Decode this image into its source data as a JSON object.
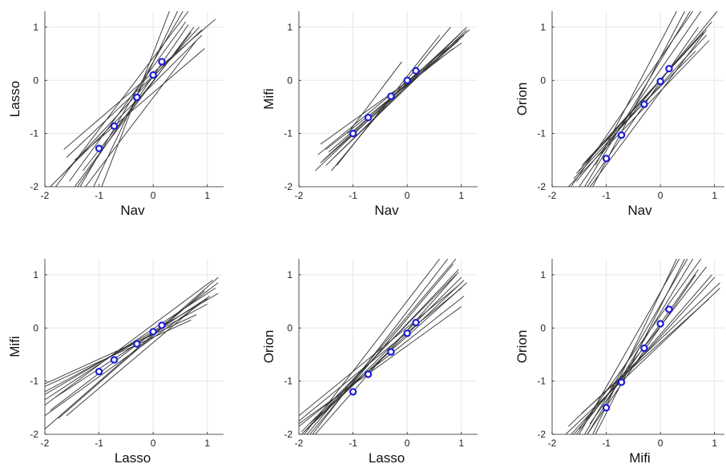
{
  "chart_data": [
    {
      "type": "line",
      "xlabel": "Nav",
      "ylabel": "Lasso",
      "xlim": [
        -2,
        1.3
      ],
      "ylim": [
        -2,
        1.3
      ],
      "xticks": [
        -2,
        -1,
        0,
        1
      ],
      "yticks": [
        -2,
        -1,
        0,
        1
      ],
      "tick_labels": [
        "-2",
        "-1",
        "0",
        "1"
      ],
      "grid": true,
      "points": [
        [
          -1.0,
          -1.28
        ],
        [
          -0.72,
          -0.86
        ],
        [
          -0.3,
          -0.32
        ],
        [
          0.0,
          0.1
        ],
        [
          0.16,
          0.35
        ]
      ],
      "lines": [
        [
          -1.8,
          -2.0,
          0.65,
          1.3
        ],
        [
          -1.7,
          -1.8,
          0.85,
          1.0
        ],
        [
          -1.45,
          -2.0,
          0.75,
          1.0
        ],
        [
          -1.6,
          -1.45,
          0.9,
          0.95
        ],
        [
          -1.35,
          -2.0,
          0.55,
          1.3
        ],
        [
          -1.9,
          -2.0,
          0.9,
          0.85
        ],
        [
          -1.1,
          -2.0,
          0.45,
          1.3
        ],
        [
          -1.3,
          -1.7,
          0.7,
          0.9
        ],
        [
          -1.55,
          -1.9,
          0.6,
          1.1
        ],
        [
          -1.25,
          -2.0,
          0.8,
          0.75
        ],
        [
          -0.95,
          -2.0,
          0.3,
          1.3
        ],
        [
          -1.65,
          -1.3,
          1.15,
          1.15
        ],
        [
          -1.45,
          -1.5,
          0.95,
          0.6
        ],
        [
          -1.4,
          -2.0,
          0.65,
          1.05
        ]
      ]
    },
    {
      "type": "line",
      "xlabel": "Nav",
      "ylabel": "Mifi",
      "xlim": [
        -2,
        1.3
      ],
      "ylim": [
        -2,
        1.3
      ],
      "xticks": [
        -2,
        -1,
        0,
        1
      ],
      "yticks": [
        -2,
        -1,
        0,
        1
      ],
      "tick_labels": [
        "-2",
        "-1",
        "0",
        "1"
      ],
      "grid": true,
      "points": [
        [
          -1.0,
          -1.0
        ],
        [
          -0.72,
          -0.7
        ],
        [
          -0.3,
          -0.3
        ],
        [
          0.0,
          0.0
        ],
        [
          0.16,
          0.18
        ]
      ],
      "lines": [
        [
          -1.7,
          -1.7,
          1.1,
          1.0
        ],
        [
          -1.6,
          -1.2,
          1.0,
          0.7
        ],
        [
          -1.5,
          -1.6,
          1.0,
          0.9
        ],
        [
          -1.65,
          -1.4,
          1.15,
          0.95
        ],
        [
          -1.3,
          -1.6,
          0.6,
          0.85
        ],
        [
          -1.1,
          -1.0,
          -0.1,
          0.35
        ],
        [
          -1.55,
          -1.5,
          0.9,
          0.8
        ],
        [
          -1.4,
          -1.7,
          0.8,
          1.0
        ],
        [
          -1.45,
          -1.35,
          1.05,
          0.85
        ],
        [
          -1.6,
          -1.55,
          0.95,
          0.75
        ],
        [
          -1.35,
          -1.45,
          1.1,
          0.95
        ],
        [
          -1.5,
          -1.3,
          0.85,
          0.6
        ]
      ]
    },
    {
      "type": "line",
      "xlabel": "Nav",
      "ylabel": "Orion",
      "xlim": [
        -2,
        1.3
      ],
      "ylim": [
        -2,
        1.3
      ],
      "xticks": [
        -2,
        -1,
        0,
        1
      ],
      "yticks": [
        -2,
        -1,
        0,
        1
      ],
      "tick_labels": [
        "-2",
        "-1",
        "0",
        "1"
      ],
      "grid": true,
      "points": [
        [
          -1.0,
          -1.47
        ],
        [
          -0.72,
          -1.03
        ],
        [
          -0.3,
          -0.45
        ],
        [
          0.0,
          -0.02
        ],
        [
          0.16,
          0.22
        ]
      ],
      "lines": [
        [
          -1.65,
          -2.0,
          0.6,
          1.3
        ],
        [
          -1.5,
          -2.0,
          0.75,
          1.3
        ],
        [
          -1.4,
          -2.0,
          0.55,
          1.3
        ],
        [
          -1.55,
          -1.75,
          0.95,
          1.1
        ],
        [
          -1.3,
          -2.0,
          0.85,
          0.95
        ],
        [
          -1.7,
          -2.0,
          0.9,
          0.75
        ],
        [
          -1.25,
          -2.0,
          0.45,
          1.3
        ],
        [
          -1.45,
          -1.6,
          0.8,
          0.9
        ],
        [
          -1.35,
          -2.0,
          0.7,
          1.0
        ],
        [
          -1.6,
          -1.85,
          0.85,
          0.85
        ],
        [
          -1.2,
          -1.6,
          0.3,
          1.3
        ],
        [
          -1.5,
          -1.7,
          0.7,
          0.8
        ],
        [
          -1.4,
          -1.55,
          0.65,
          0.55
        ],
        [
          -1.55,
          -1.9,
          1.05,
          1.3
        ]
      ]
    },
    {
      "type": "line",
      "xlabel": "Lasso",
      "ylabel": "Mifi",
      "xlim": [
        -2,
        1.3
      ],
      "ylim": [
        -2,
        1.3
      ],
      "xticks": [
        -2,
        -1,
        0,
        1
      ],
      "yticks": [
        -2,
        -1,
        0,
        1
      ],
      "tick_labels": [
        "-2",
        "-1",
        "0",
        "1"
      ],
      "grid": true,
      "points": [
        [
          -1.0,
          -0.82
        ],
        [
          -0.72,
          -0.6
        ],
        [
          -0.3,
          -0.3
        ],
        [
          0.0,
          -0.07
        ],
        [
          0.16,
          0.05
        ]
      ],
      "lines": [
        [
          -2.0,
          -1.9,
          1.2,
          0.95
        ],
        [
          -2.0,
          -1.45,
          1.1,
          0.9
        ],
        [
          -2.0,
          -1.2,
          1.0,
          0.45
        ],
        [
          -2.0,
          -1.35,
          1.15,
          0.75
        ],
        [
          -2.0,
          -1.05,
          0.8,
          0.25
        ],
        [
          -2.0,
          -1.65,
          1.0,
          0.55
        ],
        [
          -1.9,
          -1.55,
          1.2,
          0.85
        ],
        [
          -1.75,
          -1.7,
          0.95,
          0.7
        ],
        [
          -2.0,
          -1.1,
          0.7,
          0.15
        ],
        [
          -1.8,
          -1.3,
          1.05,
          0.6
        ],
        [
          -1.6,
          -1.65,
          0.9,
          0.5
        ],
        [
          -2.0,
          -1.25,
          1.2,
          0.65
        ]
      ]
    },
    {
      "type": "line",
      "xlabel": "Lasso",
      "ylabel": "Orion",
      "xlim": [
        -2,
        1.3
      ],
      "ylim": [
        -2,
        1.3
      ],
      "xticks": [
        -2,
        -1,
        0,
        1
      ],
      "yticks": [
        -2,
        -1,
        0,
        1
      ],
      "tick_labels": [
        "-2",
        "-1",
        "0",
        "1"
      ],
      "grid": true,
      "points": [
        [
          -1.0,
          -1.2
        ],
        [
          -0.72,
          -0.87
        ],
        [
          -0.3,
          -0.45
        ],
        [
          0.0,
          -0.1
        ],
        [
          0.16,
          0.1
        ]
      ],
      "lines": [
        [
          -1.85,
          -2.0,
          0.9,
          1.3
        ],
        [
          -2.0,
          -1.8,
          1.0,
          0.4
        ],
        [
          -1.95,
          -2.0,
          1.0,
          0.95
        ],
        [
          -1.9,
          -1.95,
          0.95,
          1.1
        ],
        [
          -2.0,
          -1.85,
          1.05,
          0.6
        ],
        [
          -1.75,
          -2.0,
          0.75,
          1.3
        ],
        [
          -1.8,
          -2.0,
          0.85,
          1.2
        ],
        [
          -2.0,
          -1.65,
          0.95,
          0.8
        ],
        [
          -1.9,
          -2.0,
          0.6,
          1.3
        ],
        [
          -2.0,
          -1.75,
          1.0,
          0.75
        ],
        [
          -1.7,
          -2.0,
          0.95,
          1.05
        ],
        [
          -1.85,
          -1.9,
          1.05,
          0.9
        ],
        [
          -1.95,
          -1.95,
          0.9,
          1.0
        ],
        [
          -1.8,
          -1.8,
          1.1,
          0.85
        ]
      ]
    },
    {
      "type": "line",
      "xlabel": "Mifi",
      "ylabel": "Orion",
      "xlim": [
        -2,
        1.3
      ],
      "ylim": [
        -2,
        1.3
      ],
      "xticks": [
        -2,
        -1,
        0,
        1
      ],
      "yticks": [
        -2,
        -1,
        0,
        1
      ],
      "tick_labels": [
        "-2",
        "-1",
        "0",
        "1"
      ],
      "grid": true,
      "points": [
        [
          -1.0,
          -1.5
        ],
        [
          -0.72,
          -1.02
        ],
        [
          -0.3,
          -0.38
        ],
        [
          0.0,
          0.08
        ],
        [
          0.16,
          0.35
        ]
      ],
      "lines": [
        [
          -1.5,
          -2.0,
          0.35,
          1.3
        ],
        [
          -1.35,
          -2.0,
          0.6,
          1.3
        ],
        [
          -1.65,
          -2.0,
          1.0,
          0.95
        ],
        [
          -1.25,
          -2.0,
          0.3,
          1.3
        ],
        [
          -1.55,
          -2.0,
          0.85,
          1.15
        ],
        [
          -1.7,
          -1.85,
          1.1,
          0.85
        ],
        [
          -1.4,
          -2.0,
          0.5,
          1.3
        ],
        [
          -1.2,
          -2.0,
          0.45,
          1.3
        ],
        [
          -1.6,
          -2.0,
          0.95,
          1.0
        ],
        [
          -1.45,
          -1.6,
          0.9,
          0.55
        ],
        [
          -1.3,
          -1.8,
          0.7,
          1.1
        ],
        [
          -1.75,
          -2.0,
          1.1,
          0.75
        ],
        [
          -1.5,
          -1.9,
          0.75,
          1.3
        ],
        [
          -1.35,
          -2.0,
          0.65,
          1.0
        ]
      ]
    }
  ]
}
